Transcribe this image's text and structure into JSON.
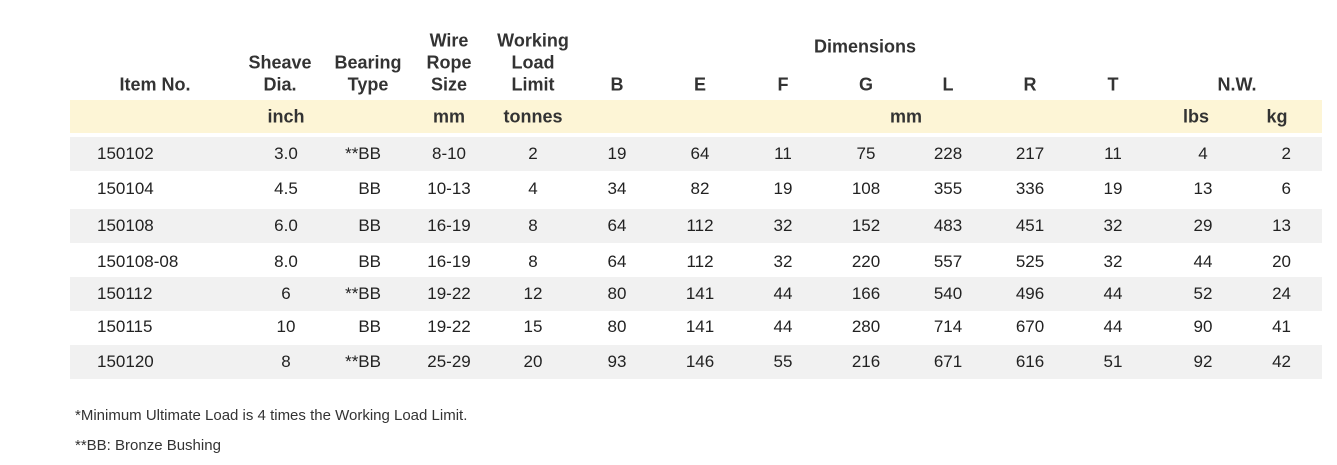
{
  "table": {
    "group_dimensions": "Dimensions",
    "group_nw": "N.W.",
    "columns": [
      [
        "Item No."
      ],
      [
        "Sheave",
        "Dia."
      ],
      [
        "Bearing",
        "Type"
      ],
      [
        "Wire",
        "Rope",
        "Size"
      ],
      [
        "Working",
        "Load",
        "Limit"
      ],
      [
        "B"
      ],
      [
        "E"
      ],
      [
        "F"
      ],
      [
        "G"
      ],
      [
        "L"
      ],
      [
        "R"
      ],
      [
        "T"
      ],
      [
        "lbs"
      ],
      [
        "kg"
      ]
    ],
    "units": [
      "inch",
      "mm",
      "tonnes",
      "mm",
      "lbs",
      "kg"
    ],
    "rows": [
      [
        "150102",
        "3.0",
        "**BB",
        "8-10",
        "2",
        "19",
        "64",
        "11",
        "75",
        "228",
        "217",
        "11",
        "4",
        "2"
      ],
      [
        "150104",
        "4.5",
        "BB",
        "10-13",
        "4",
        "34",
        "82",
        "19",
        "108",
        "355",
        "336",
        "19",
        "13",
        "6"
      ],
      [
        "150108",
        "6.0",
        "BB",
        "16-19",
        "8",
        "64",
        "112",
        "32",
        "152",
        "483",
        "451",
        "32",
        "29",
        "13"
      ],
      [
        "150108-08",
        "8.0",
        "BB",
        "16-19",
        "8",
        "64",
        "112",
        "32",
        "220",
        "557",
        "525",
        "32",
        "44",
        "20"
      ],
      [
        "150112",
        "6",
        "**BB",
        "19-22",
        "12",
        "80",
        "141",
        "44",
        "166",
        "540",
        "496",
        "44",
        "52",
        "24"
      ],
      [
        "150115",
        "10",
        "BB",
        "19-22",
        "15",
        "80",
        "141",
        "44",
        "280",
        "714",
        "670",
        "44",
        "90",
        "41"
      ],
      [
        "150120",
        "8",
        "**BB",
        "25-29",
        "20",
        "93",
        "146",
        "55",
        "216",
        "671",
        "616",
        "51",
        "92",
        "42"
      ]
    ]
  },
  "footnotes": [
    "*Minimum Ultimate Load is 4 times the Working Load Limit.",
    "**BB: Bronze Bushing"
  ]
}
